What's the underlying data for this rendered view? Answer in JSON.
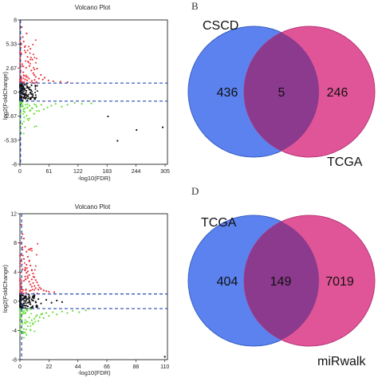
{
  "panel_labels": {
    "b": "B",
    "d": "D"
  },
  "chart_data": [
    {
      "type": "scatter",
      "title": "Volcano Plot",
      "xlabel": "-log10(FDR)",
      "ylabel": "log2(FoldChange)",
      "xlim": [
        0,
        310
      ],
      "ylim": [
        -8,
        8
      ],
      "xticks": [
        "0",
        "61",
        "122",
        "183",
        "244",
        "305"
      ],
      "yticks": [
        "8",
        "5.33",
        "2.67",
        "0",
        "-2.67",
        "-5.33",
        "-8"
      ],
      "thresholds_y": [
        1,
        -1
      ],
      "threshold_x": 1.3,
      "colors": {
        "up": "#e8323c",
        "down": "#66dd33",
        "ns": "#111111",
        "threshold": "#2b4bb0"
      },
      "series": [
        {
          "group": "up",
          "points": [
            [
              4,
              7.2
            ],
            [
              6,
              6.1
            ],
            [
              8,
              5.6
            ],
            [
              10,
              5.0
            ],
            [
              12,
              4.4
            ],
            [
              14,
              6.5
            ],
            [
              16,
              3.9
            ],
            [
              18,
              3.3
            ],
            [
              20,
              2.9
            ],
            [
              22,
              4.8
            ],
            [
              24,
              2.4
            ],
            [
              26,
              3.6
            ],
            [
              28,
              2.1
            ],
            [
              30,
              1.9
            ],
            [
              33,
              1.7
            ],
            [
              36,
              2.6
            ],
            [
              40,
              1.5
            ],
            [
              44,
              1.9
            ],
            [
              48,
              1.4
            ],
            [
              52,
              1.6
            ],
            [
              5,
              3.1
            ],
            [
              7,
              2.2
            ],
            [
              9,
              1.8
            ],
            [
              11,
              1.4
            ],
            [
              13,
              2.7
            ],
            [
              3,
              4.2
            ],
            [
              15,
              1.3
            ],
            [
              19,
              1.5
            ],
            [
              25,
              1.25
            ],
            [
              31,
              1.35
            ],
            [
              60,
              1.3
            ],
            [
              70,
              1.2
            ],
            [
              85,
              1.15
            ],
            [
              100,
              1.1
            ]
          ]
        },
        {
          "group": "down",
          "points": [
            [
              4,
              -1.3
            ],
            [
              6,
              -1.6
            ],
            [
              8,
              -1.9
            ],
            [
              10,
              -2.2
            ],
            [
              12,
              -1.4
            ],
            [
              14,
              -2.6
            ],
            [
              16,
              -1.7
            ],
            [
              18,
              -3.1
            ],
            [
              20,
              -1.5
            ],
            [
              22,
              -2.0
            ],
            [
              26,
              -1.8
            ],
            [
              30,
              -2.4
            ],
            [
              35,
              -1.6
            ],
            [
              40,
              -2.1
            ],
            [
              45,
              -1.4
            ],
            [
              50,
              -1.9
            ],
            [
              58,
              -1.7
            ],
            [
              66,
              -1.5
            ],
            [
              75,
              -1.3
            ],
            [
              88,
              -1.6
            ],
            [
              100,
              -1.4
            ],
            [
              115,
              -1.2
            ],
            [
              9,
              -2.8
            ],
            [
              5,
              -3.5
            ],
            [
              130,
              -1.3
            ],
            [
              150,
              -1.25
            ]
          ]
        },
        {
          "group": "ns",
          "points": [
            [
              1,
              0.4
            ],
            [
              2,
              -0.3
            ],
            [
              3,
              0.6
            ],
            [
              4,
              -0.5
            ],
            [
              5,
              0.2
            ],
            [
              6,
              -0.1
            ],
            [
              7,
              0.5
            ],
            [
              8,
              -0.6
            ],
            [
              9,
              0.3
            ],
            [
              10,
              -0.4
            ],
            [
              11,
              0.8
            ],
            [
              12,
              -0.7
            ],
            [
              2,
              0.9
            ],
            [
              3,
              -0.9
            ],
            [
              1,
              -0.2
            ],
            [
              6,
              0.7
            ],
            [
              8,
              0.1
            ],
            [
              13,
              -0.3
            ],
            [
              15,
              0.5
            ],
            [
              17,
              -0.5
            ],
            [
              20,
              0.3
            ],
            [
              24,
              -0.2
            ],
            [
              1,
              0.1
            ],
            [
              2,
              0.2
            ],
            [
              3,
              -0.1
            ],
            [
              4,
              0.0
            ]
          ]
        },
        {
          "group": "outlier",
          "points": [
            [
              185,
              -2.7
            ],
            [
              245,
              -4.2
            ],
            [
              300,
              -3.9
            ],
            [
              205,
              -5.4
            ]
          ]
        }
      ]
    },
    {
      "type": "scatter",
      "title": "Volcano Plot",
      "xlabel": "-log10(FDR)",
      "ylabel": "log2(FoldChange)",
      "xlim": [
        0,
        112
      ],
      "ylim": [
        -8,
        12
      ],
      "xticks": [
        "0",
        "22",
        "44",
        "66",
        "88",
        "110"
      ],
      "yticks": [
        "12",
        "8",
        "4",
        "0",
        "-4",
        "-8"
      ],
      "thresholds_y": [
        1,
        -1
      ],
      "threshold_x": 1.3,
      "colors": {
        "up": "#e8323c",
        "down": "#66dd33",
        "ns": "#111111",
        "threshold": "#2b4bb0"
      },
      "series": [
        {
          "group": "up",
          "points": [
            [
              1,
              10.5
            ],
            [
              2,
              9.2
            ],
            [
              3,
              8.6
            ],
            [
              4,
              7.5
            ],
            [
              5,
              6.8
            ],
            [
              6,
              6.1
            ],
            [
              7,
              5.5
            ],
            [
              8,
              4.9
            ],
            [
              9,
              4.3
            ],
            [
              10,
              3.8
            ],
            [
              11,
              3.3
            ],
            [
              12,
              2.9
            ],
            [
              13,
              2.6
            ],
            [
              14,
              2.2
            ],
            [
              15,
              1.9
            ],
            [
              16,
              1.7
            ],
            [
              18,
              1.5
            ],
            [
              20,
              1.4
            ],
            [
              3,
              5.8
            ],
            [
              4,
              4.6
            ],
            [
              5,
              3.9
            ],
            [
              6,
              3.2
            ],
            [
              7,
              2.7
            ],
            [
              8,
              2.3
            ],
            [
              9,
              2.0
            ],
            [
              2,
              7.1
            ],
            [
              1,
              8.0
            ],
            [
              12,
              1.8
            ],
            [
              14,
              1.6
            ],
            [
              22,
              1.3
            ],
            [
              26,
              1.25
            ],
            [
              5,
              5.0
            ],
            [
              6,
              4.1
            ],
            [
              7,
              3.6
            ],
            [
              9,
              3.0
            ],
            [
              10,
              2.5
            ],
            [
              11,
              2.1
            ],
            [
              4,
              3.4
            ],
            [
              3,
              2.8
            ],
            [
              2,
              4.4
            ]
          ]
        },
        {
          "group": "down",
          "points": [
            [
              1,
              -2.5
            ],
            [
              2,
              -3.1
            ],
            [
              3,
              -3.8
            ],
            [
              4,
              -4.3
            ],
            [
              5,
              -2.8
            ],
            [
              6,
              -3.4
            ],
            [
              7,
              -2.2
            ],
            [
              8,
              -3.9
            ],
            [
              9,
              -2.6
            ],
            [
              10,
              -3.0
            ],
            [
              12,
              -2.1
            ],
            [
              14,
              -2.7
            ],
            [
              16,
              -1.8
            ],
            [
              18,
              -2.3
            ],
            [
              20,
              -1.6
            ],
            [
              22,
              -2.0
            ],
            [
              25,
              -1.5
            ],
            [
              28,
              -1.8
            ],
            [
              32,
              -1.4
            ],
            [
              36,
              -1.6
            ],
            [
              40,
              -1.3
            ],
            [
              45,
              -1.5
            ],
            [
              50,
              -1.25
            ],
            [
              3,
              -5.0
            ],
            [
              5,
              -4.6
            ],
            [
              2,
              -4.2
            ],
            [
              11,
              -2.4
            ],
            [
              13,
              -1.9
            ],
            [
              15,
              -2.2
            ],
            [
              17,
              -1.7
            ]
          ]
        },
        {
          "group": "ns",
          "points": [
            [
              0.5,
              0.5
            ],
            [
              1,
              -0.5
            ],
            [
              1.5,
              0.8
            ],
            [
              2,
              -0.8
            ],
            [
              2.5,
              0.3
            ],
            [
              3,
              -0.3
            ],
            [
              3.5,
              0.6
            ],
            [
              4,
              -0.6
            ],
            [
              5,
              0.2
            ],
            [
              6,
              -0.2
            ],
            [
              7,
              0.4
            ],
            [
              8,
              -0.4
            ],
            [
              10,
              0.1
            ],
            [
              12,
              -0.1
            ],
            [
              14,
              0.3
            ],
            [
              16,
              -0.3
            ],
            [
              20,
              0.2
            ],
            [
              24,
              -0.2
            ],
            [
              28,
              0.1
            ],
            [
              32,
              -0.1
            ],
            [
              1,
              0.9
            ],
            [
              2,
              -0.9
            ],
            [
              4,
              0.7
            ],
            [
              6,
              -0.7
            ]
          ]
        },
        {
          "group": "outlier",
          "points": [
            [
              110,
              -7.6
            ]
          ]
        }
      ]
    },
    {
      "type": "venn",
      "sets": [
        "CSCD",
        "TCGA"
      ],
      "values": {
        "only_a": 436,
        "intersection": 5,
        "only_b": 246
      },
      "colors": {
        "a": "#5b82ee",
        "b": "#e05598",
        "overlap": "#8b3a8d"
      }
    },
    {
      "type": "venn",
      "sets": [
        "TCGA",
        "miRwalk"
      ],
      "values": {
        "only_a": 404,
        "intersection": 149,
        "only_b": 7019
      },
      "colors": {
        "a": "#5b82ee",
        "b": "#e05598",
        "overlap": "#8b3a8d"
      }
    }
  ]
}
